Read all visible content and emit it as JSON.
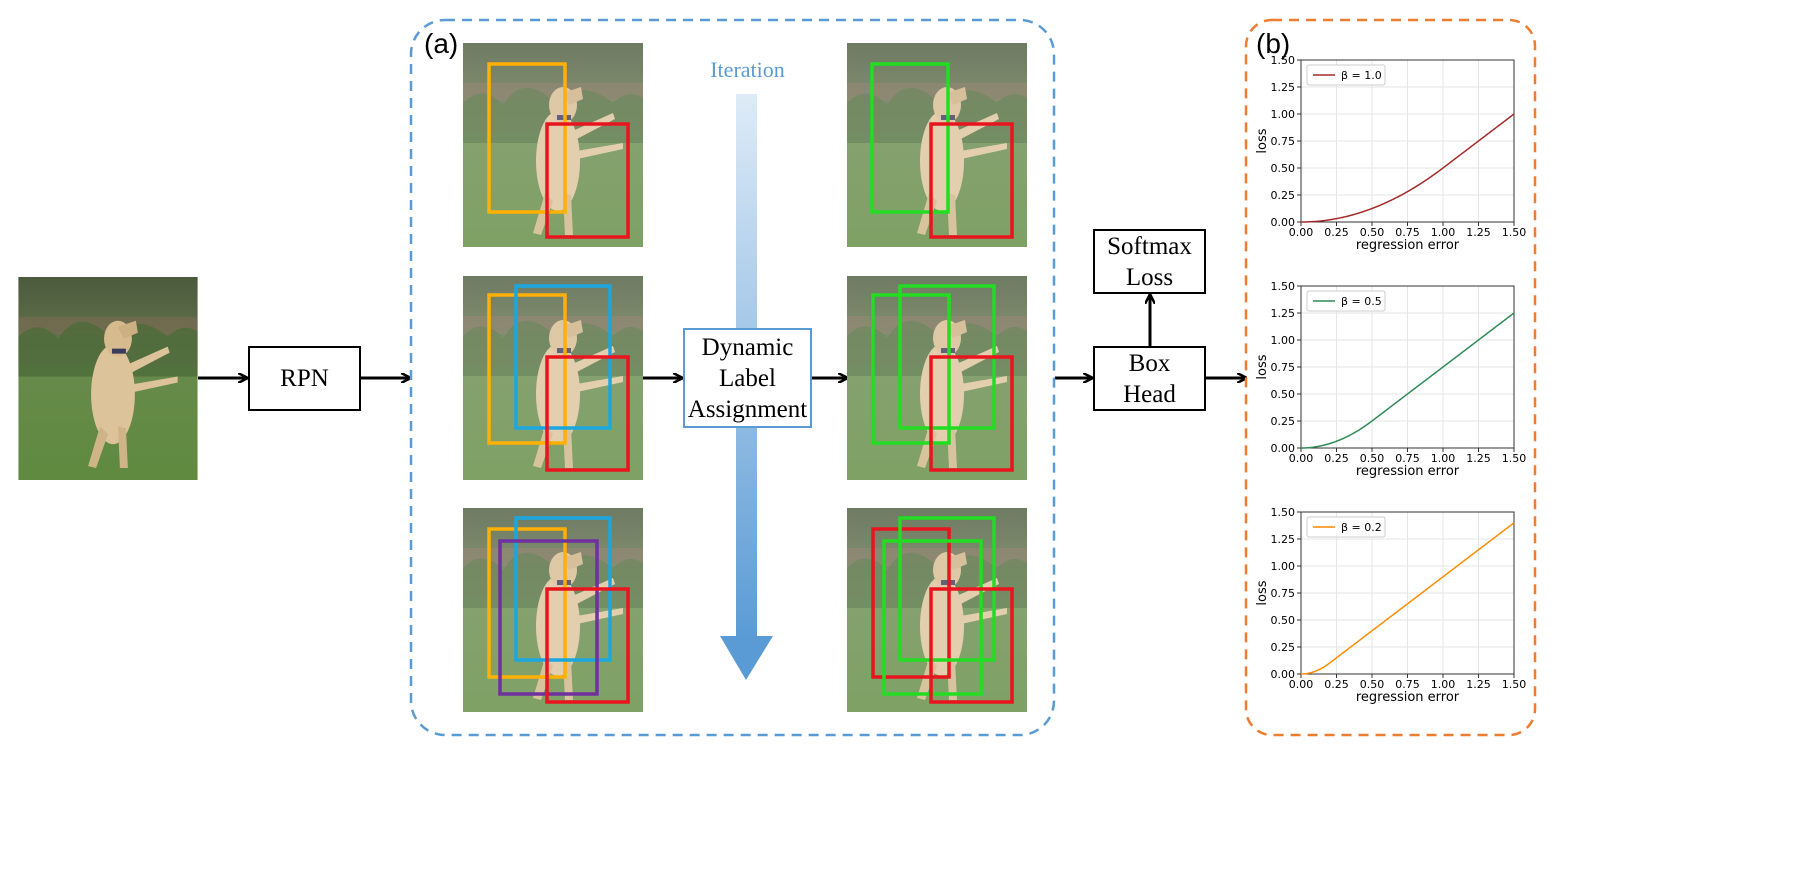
{
  "panel_a_label": "(a)",
  "panel_b_label": "(b)",
  "iteration_label": "Iteration",
  "rpn_label": "RPN",
  "dla_label": [
    "Dynamic",
    "Label",
    "Assignment"
  ],
  "softmax_label": [
    "Softmax",
    "Loss"
  ],
  "boxhead_label": [
    "Box",
    "Head"
  ],
  "colors": {
    "panel_a_border": "#5b9bd5",
    "panel_b_border": "#ed7d31",
    "gt_box": "#e8141e",
    "proposal_orange": "#ffb000",
    "proposal_blue": "#1aa7e0",
    "proposal_purple": "#7030a0",
    "positive_green": "#22dd22"
  },
  "chart_data": [
    {
      "type": "line",
      "xlabel": "regression error",
      "ylabel": "loss",
      "xlim": [
        0,
        1.5
      ],
      "ylim": [
        0,
        1.5
      ],
      "xticks": [
        "0.00",
        "0.25",
        "0.50",
        "0.75",
        "1.00",
        "1.25",
        "1.50"
      ],
      "yticks": [
        "0.00",
        "0.25",
        "0.50",
        "0.75",
        "1.00",
        "1.25",
        "1.50"
      ],
      "grid": true,
      "legend": "top-left",
      "series": [
        {
          "name": "β = 1.0",
          "beta": 1.0,
          "color": "#a52a2a",
          "x": [
            0,
            0.25,
            0.5,
            0.75,
            1.0,
            1.25,
            1.5
          ],
          "y": [
            0,
            0.031,
            0.125,
            0.281,
            0.5,
            0.75,
            1.0
          ]
        }
      ]
    },
    {
      "type": "line",
      "xlabel": "regression error",
      "ylabel": "loss",
      "xlim": [
        0,
        1.5
      ],
      "ylim": [
        0,
        1.5
      ],
      "xticks": [
        "0.00",
        "0.25",
        "0.50",
        "0.75",
        "1.00",
        "1.25",
        "1.50"
      ],
      "yticks": [
        "0.00",
        "0.25",
        "0.50",
        "0.75",
        "1.00",
        "1.25",
        "1.50"
      ],
      "grid": true,
      "legend": "top-left",
      "series": [
        {
          "name": "β = 0.5",
          "beta": 0.5,
          "color": "#2e8b57",
          "x": [
            0,
            0.25,
            0.5,
            0.75,
            1.0,
            1.25,
            1.5
          ],
          "y": [
            0,
            0.063,
            0.25,
            0.5,
            0.75,
            1.0,
            1.25
          ]
        }
      ]
    },
    {
      "type": "line",
      "xlabel": "regression error",
      "ylabel": "loss",
      "xlim": [
        0,
        1.5
      ],
      "ylim": [
        0,
        1.5
      ],
      "xticks": [
        "0.00",
        "0.25",
        "0.50",
        "0.75",
        "1.00",
        "1.25",
        "1.50"
      ],
      "yticks": [
        "0.00",
        "0.25",
        "0.50",
        "0.75",
        "1.00",
        "1.25",
        "1.50"
      ],
      "grid": true,
      "legend": "top-left",
      "series": [
        {
          "name": "β = 0.2",
          "beta": 0.2,
          "color": "#ff8c00",
          "x": [
            0,
            0.1,
            0.2,
            0.5,
            0.75,
            1.0,
            1.25,
            1.5
          ],
          "y": [
            0,
            0.025,
            0.1,
            0.4,
            0.65,
            0.9,
            1.15,
            1.4
          ]
        }
      ]
    }
  ]
}
